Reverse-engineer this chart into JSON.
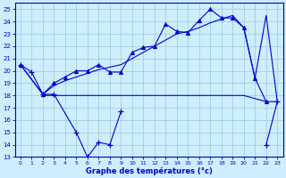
{
  "xlabel": "Graphe des températures (°c)",
  "bg_color": "#cceeff",
  "line_color": "#0000cc",
  "grid_color": "#99cccc",
  "xlim": [
    -0.5,
    23.5
  ],
  "ylim": [
    13,
    25.5
  ],
  "yticks": [
    13,
    14,
    15,
    16,
    17,
    18,
    19,
    20,
    21,
    22,
    23,
    24,
    25
  ],
  "xticks": [
    0,
    1,
    2,
    3,
    4,
    5,
    6,
    7,
    8,
    9,
    10,
    11,
    12,
    13,
    14,
    15,
    16,
    17,
    18,
    19,
    20,
    21,
    22,
    23
  ],
  "series_min_x": [
    0,
    1,
    2,
    3,
    5,
    6,
    7,
    8,
    9,
    22,
    23
  ],
  "series_min_y": [
    20.5,
    19.9,
    18.1,
    18.1,
    15.0,
    13.0,
    14.2,
    14.0,
    16.7,
    14.0,
    17.5
  ],
  "series_flat_x": [
    2,
    3,
    4,
    5,
    6,
    7,
    8,
    9,
    10,
    11,
    12,
    13,
    14,
    15,
    16,
    17,
    18,
    19,
    20,
    22,
    23
  ],
  "series_flat_y": [
    18.0,
    18.0,
    18.0,
    18.0,
    18.0,
    18.0,
    18.0,
    18.0,
    18.0,
    18.0,
    18.0,
    18.0,
    18.0,
    18.0,
    18.0,
    18.0,
    18.0,
    18.0,
    18.0,
    17.5,
    17.5
  ],
  "series_upper_x": [
    0,
    2,
    3,
    4,
    5,
    6,
    7,
    8,
    9,
    10,
    11,
    12,
    13,
    14,
    15,
    16,
    17,
    18,
    19,
    20,
    21,
    22
  ],
  "series_upper_y": [
    20.5,
    18.1,
    19.0,
    19.5,
    20.0,
    20.0,
    20.5,
    19.9,
    19.9,
    21.5,
    21.9,
    22.0,
    23.8,
    23.2,
    23.1,
    24.1,
    25.0,
    24.3,
    24.3,
    23.5,
    19.4,
    17.5
  ],
  "series_trend_x": [
    0,
    2,
    3,
    4,
    5,
    6,
    7,
    8,
    9,
    10,
    11,
    12,
    13,
    14,
    15,
    16,
    17,
    18,
    19,
    20,
    21,
    22,
    23
  ],
  "series_trend_y": [
    20.5,
    18.1,
    18.8,
    19.2,
    19.5,
    19.8,
    20.1,
    20.3,
    20.5,
    21.0,
    21.5,
    22.0,
    22.5,
    23.0,
    23.2,
    23.5,
    23.9,
    24.2,
    24.5,
    23.5,
    19.4,
    24.5,
    17.5
  ]
}
